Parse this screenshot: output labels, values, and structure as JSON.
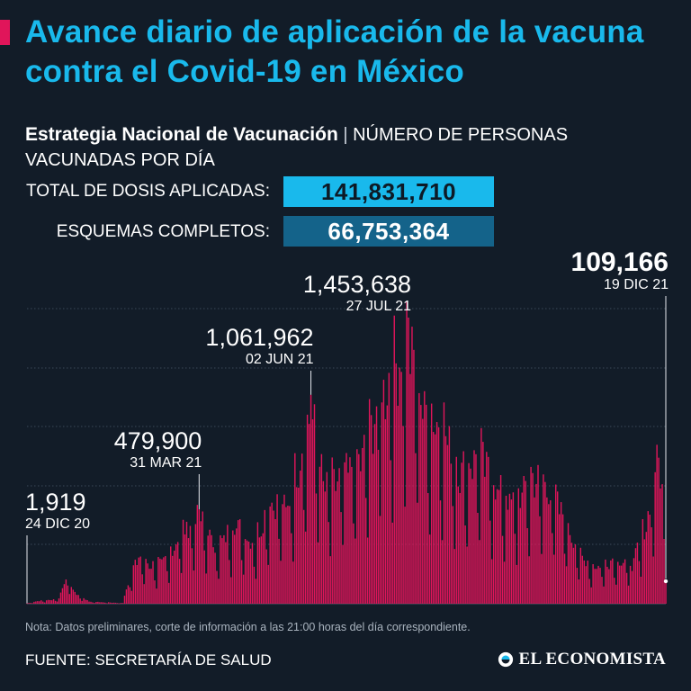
{
  "header": {
    "title": "Avance diario de aplicación de la vacuna contra el Covid-19 en México",
    "subtitle_strong": "Estrategia Nacional de Vacunación",
    "subtitle_sep": " | ",
    "subtitle_rest": "NÚMERO DE PERSONAS VACUNADAS POR DÍA"
  },
  "stats": {
    "total_label": "TOTAL DE DOSIS APLICADAS:",
    "total_value": "141,831,710",
    "complete_label": "ESQUEMAS COMPLETOS:",
    "complete_value": "66,753,364"
  },
  "colors": {
    "background": "#121c28",
    "title": "#19b9ec",
    "bars": "#e0155a",
    "total_box": "#19b9ec",
    "complete_box": "#14638a",
    "gridline": "#4a5868"
  },
  "chart_data": {
    "type": "bar",
    "x_start": "2020-12-24",
    "x_end": "2021-12-19",
    "ylim": [
      0,
      1600000
    ],
    "grid": true,
    "weekly_pattern": [
      1.0,
      0.93,
      0.88,
      0.92,
      0.95,
      0.62,
      0.38
    ],
    "envelope": [
      [
        "2020-12-24",
        1919
      ],
      [
        "2020-12-30",
        15000
      ],
      [
        "2021-01-06",
        20000
      ],
      [
        "2021-01-11",
        30000
      ],
      [
        "2021-01-15",
        150000
      ],
      [
        "2021-01-20",
        60000
      ],
      [
        "2021-01-28",
        12000
      ],
      [
        "2021-02-10",
        6000
      ],
      [
        "2021-02-16",
        4000
      ],
      [
        "2021-02-18",
        90000
      ],
      [
        "2021-02-25",
        260000
      ],
      [
        "2021-03-04",
        210000
      ],
      [
        "2021-03-12",
        230000
      ],
      [
        "2021-03-20",
        380000
      ],
      [
        "2021-03-31",
        479900
      ],
      [
        "2021-04-10",
        300000
      ],
      [
        "2021-04-20",
        440000
      ],
      [
        "2021-05-01",
        330000
      ],
      [
        "2021-05-10",
        560000
      ],
      [
        "2021-05-20",
        520000
      ],
      [
        "2021-06-02",
        1061962
      ],
      [
        "2021-06-10",
        620000
      ],
      [
        "2021-06-20",
        700000
      ],
      [
        "2021-07-01",
        800000
      ],
      [
        "2021-07-10",
        1100000
      ],
      [
        "2021-07-27",
        1453638
      ],
      [
        "2021-08-05",
        1050000
      ],
      [
        "2021-08-15",
        980000
      ],
      [
        "2021-08-25",
        720000
      ],
      [
        "2021-09-05",
        820000
      ],
      [
        "2021-09-15",
        620000
      ],
      [
        "2021-09-25",
        540000
      ],
      [
        "2021-10-05",
        700000
      ],
      [
        "2021-10-15",
        620000
      ],
      [
        "2021-10-25",
        430000
      ],
      [
        "2021-11-01",
        260000
      ],
      [
        "2021-11-10",
        200000
      ],
      [
        "2021-11-20",
        250000
      ],
      [
        "2021-11-30",
        210000
      ],
      [
        "2021-12-08",
        440000
      ],
      [
        "2021-12-15",
        820000
      ],
      [
        "2021-12-18",
        500000
      ],
      [
        "2021-12-19",
        109166
      ]
    ],
    "annotations": [
      {
        "date": "2020-12-24",
        "value": 1919,
        "value_label": "1,919",
        "date_label": "24 DIC 20",
        "emphasis": false
      },
      {
        "date": "2021-03-31",
        "value": 479900,
        "value_label": "479,900",
        "date_label": "31 MAR 21",
        "emphasis": false
      },
      {
        "date": "2021-06-02",
        "value": 1061962,
        "value_label": "1,061,962",
        "date_label": "02 JUN 21",
        "emphasis": false
      },
      {
        "date": "2021-07-27",
        "value": 1453638,
        "value_label": "1,453,638",
        "date_label": "27 JUL 21",
        "emphasis": false
      },
      {
        "date": "2021-12-19",
        "value": 109166,
        "value_label": "109,166",
        "date_label": "19 DIC 21",
        "emphasis": true
      }
    ]
  },
  "footer": {
    "note": "Nota: Datos preliminares, corte de información a las 21:00 horas del día correspondiente.",
    "source": "FUENTE: SECRETARÍA DE SALUD",
    "brand_icon": "el-economista-logo-icon",
    "brand": "EL ECONOMISTA"
  }
}
